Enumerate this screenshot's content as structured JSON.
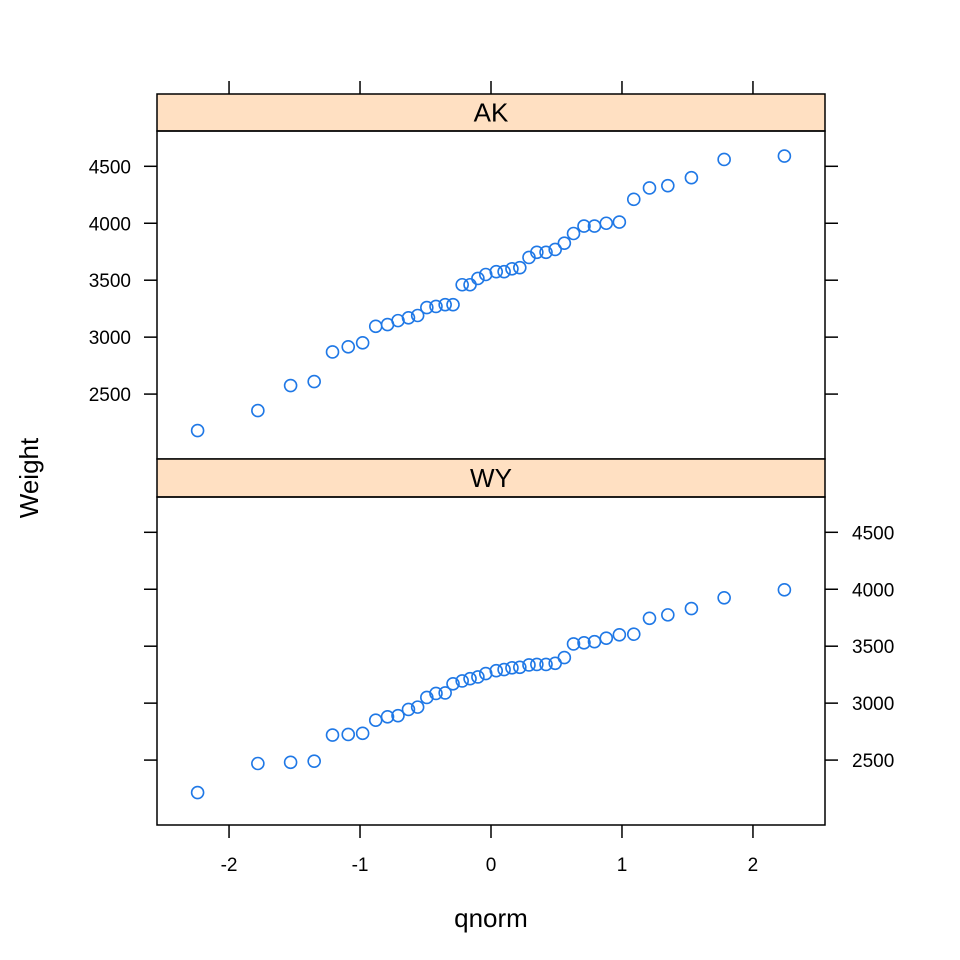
{
  "chart_data": {
    "type": "scatter",
    "xlabel": "qnorm",
    "ylabel": "Weight",
    "xlim": [
      -2.55,
      2.55
    ],
    "ylim": [
      1930,
      4810
    ],
    "x_ticks": [
      -2,
      -1,
      0,
      1,
      2
    ],
    "y_ticks": [
      2500,
      3000,
      3500,
      4000,
      4500
    ],
    "strip_color": "#ffe0c2",
    "point_color": "#1f78e6",
    "panels": [
      {
        "strip_label": "AK",
        "y_axis_side": "left",
        "x": [
          -2.24,
          -1.78,
          -1.53,
          -1.35,
          -1.21,
          -1.09,
          -0.98,
          -0.88,
          -0.79,
          -0.71,
          -0.63,
          -0.56,
          -0.49,
          -0.42,
          -0.35,
          -0.29,
          -0.22,
          -0.16,
          -0.1,
          -0.04,
          0.04,
          0.1,
          0.16,
          0.22,
          0.29,
          0.35,
          0.42,
          0.49,
          0.56,
          0.63,
          0.71,
          0.79,
          0.88,
          0.98,
          1.09,
          1.21,
          1.35,
          1.53,
          1.78,
          2.24
        ],
        "y": [
          2180,
          2355,
          2575,
          2610,
          2870,
          2915,
          2950,
          3095,
          3110,
          3145,
          3170,
          3190,
          3260,
          3270,
          3285,
          3285,
          3460,
          3460,
          3515,
          3550,
          3575,
          3575,
          3600,
          3610,
          3700,
          3745,
          3745,
          3770,
          3825,
          3910,
          3975,
          3975,
          4000,
          4010,
          4210,
          4310,
          4330,
          4400,
          4560,
          4590
        ]
      },
      {
        "strip_label": "WY",
        "y_axis_side": "right",
        "x": [
          -2.24,
          -1.78,
          -1.53,
          -1.35,
          -1.21,
          -1.09,
          -0.98,
          -0.88,
          -0.79,
          -0.71,
          -0.63,
          -0.56,
          -0.49,
          -0.42,
          -0.35,
          -0.29,
          -0.22,
          -0.16,
          -0.1,
          -0.04,
          0.04,
          0.1,
          0.16,
          0.22,
          0.29,
          0.35,
          0.42,
          0.49,
          0.56,
          0.63,
          0.71,
          0.79,
          0.88,
          0.98,
          1.09,
          1.21,
          1.35,
          1.53,
          1.78,
          2.24
        ],
        "y": [
          2215,
          2470,
          2480,
          2490,
          2720,
          2725,
          2735,
          2850,
          2880,
          2890,
          2945,
          2965,
          3050,
          3085,
          3090,
          3170,
          3195,
          3215,
          3230,
          3260,
          3285,
          3295,
          3310,
          3315,
          3335,
          3340,
          3340,
          3350,
          3400,
          3520,
          3530,
          3540,
          3570,
          3600,
          3605,
          3745,
          3775,
          3830,
          3925,
          3995
        ]
      }
    ]
  }
}
